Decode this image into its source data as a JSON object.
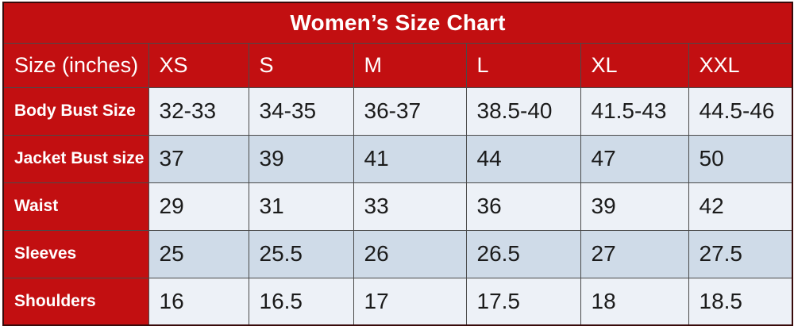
{
  "colors": {
    "red_fill": "#c20f11",
    "outer_border": "#380a0a",
    "inner_border": "#4a4a4a",
    "row_light": "#edf1f7",
    "row_dark": "#cfdbe8",
    "header_text": "#ffffff",
    "data_text": "#1b1b1b"
  },
  "chart_data": {
    "type": "table",
    "title": "Women’s Size Chart",
    "columns": [
      "Size (inches)",
      "XS",
      "S",
      "M",
      "L",
      "XL",
      "XXL"
    ],
    "rows": [
      {
        "label": "Body Bust Size",
        "values": [
          "32-33",
          "34-35",
          "36-37",
          "38.5-40",
          "41.5-43",
          "44.5-46"
        ]
      },
      {
        "label": "Jacket Bust size",
        "values": [
          "37",
          "39",
          "41",
          "44",
          "47",
          "50"
        ]
      },
      {
        "label": "Waist",
        "values": [
          "29",
          "31",
          "33",
          "36",
          "39",
          "42"
        ]
      },
      {
        "label": "Sleeves",
        "values": [
          "25",
          "25.5",
          "26",
          "26.5",
          "27",
          "27.5"
        ]
      },
      {
        "label": "Shoulders",
        "values": [
          "16",
          "16.5",
          "17",
          "17.5",
          "18",
          "18.5"
        ]
      }
    ]
  }
}
